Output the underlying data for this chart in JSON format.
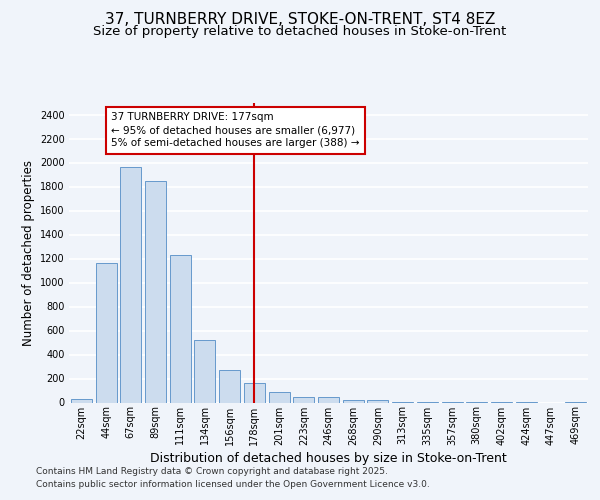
{
  "title_line1": "37, TURNBERRY DRIVE, STOKE-ON-TRENT, ST4 8EZ",
  "title_line2": "Size of property relative to detached houses in Stoke-on-Trent",
  "xlabel": "Distribution of detached houses by size in Stoke-on-Trent",
  "ylabel": "Number of detached properties",
  "categories": [
    "22sqm",
    "44sqm",
    "67sqm",
    "89sqm",
    "111sqm",
    "134sqm",
    "156sqm",
    "178sqm",
    "201sqm",
    "223sqm",
    "246sqm",
    "268sqm",
    "290sqm",
    "313sqm",
    "335sqm",
    "357sqm",
    "380sqm",
    "402sqm",
    "424sqm",
    "447sqm",
    "469sqm"
  ],
  "values": [
    30,
    1160,
    1960,
    1850,
    1230,
    520,
    275,
    160,
    90,
    50,
    45,
    25,
    20,
    8,
    5,
    3,
    2,
    1,
    1,
    0,
    1
  ],
  "bar_color": "#ccdcee",
  "bar_edge_color": "#6699cc",
  "vline_x_index": 7,
  "vline_color": "#cc0000",
  "annotation_text": "37 TURNBERRY DRIVE: 177sqm\n← 95% of detached houses are smaller (6,977)\n5% of semi-detached houses are larger (388) →",
  "annotation_box_color": "#ffffff",
  "annotation_box_edge_color": "#cc0000",
  "ylim": [
    0,
    2500
  ],
  "yticks": [
    0,
    200,
    400,
    600,
    800,
    1000,
    1200,
    1400,
    1600,
    1800,
    2000,
    2200,
    2400
  ],
  "bg_color": "#f0f4fa",
  "plot_bg_color": "#f0f4fa",
  "grid_color": "#ffffff",
  "footer_line1": "Contains HM Land Registry data © Crown copyright and database right 2025.",
  "footer_line2": "Contains public sector information licensed under the Open Government Licence v3.0.",
  "title_fontsize": 11,
  "subtitle_fontsize": 9.5,
  "tick_fontsize": 7,
  "ylabel_fontsize": 8.5,
  "xlabel_fontsize": 9,
  "annotation_fontsize": 7.5,
  "footer_fontsize": 6.5
}
